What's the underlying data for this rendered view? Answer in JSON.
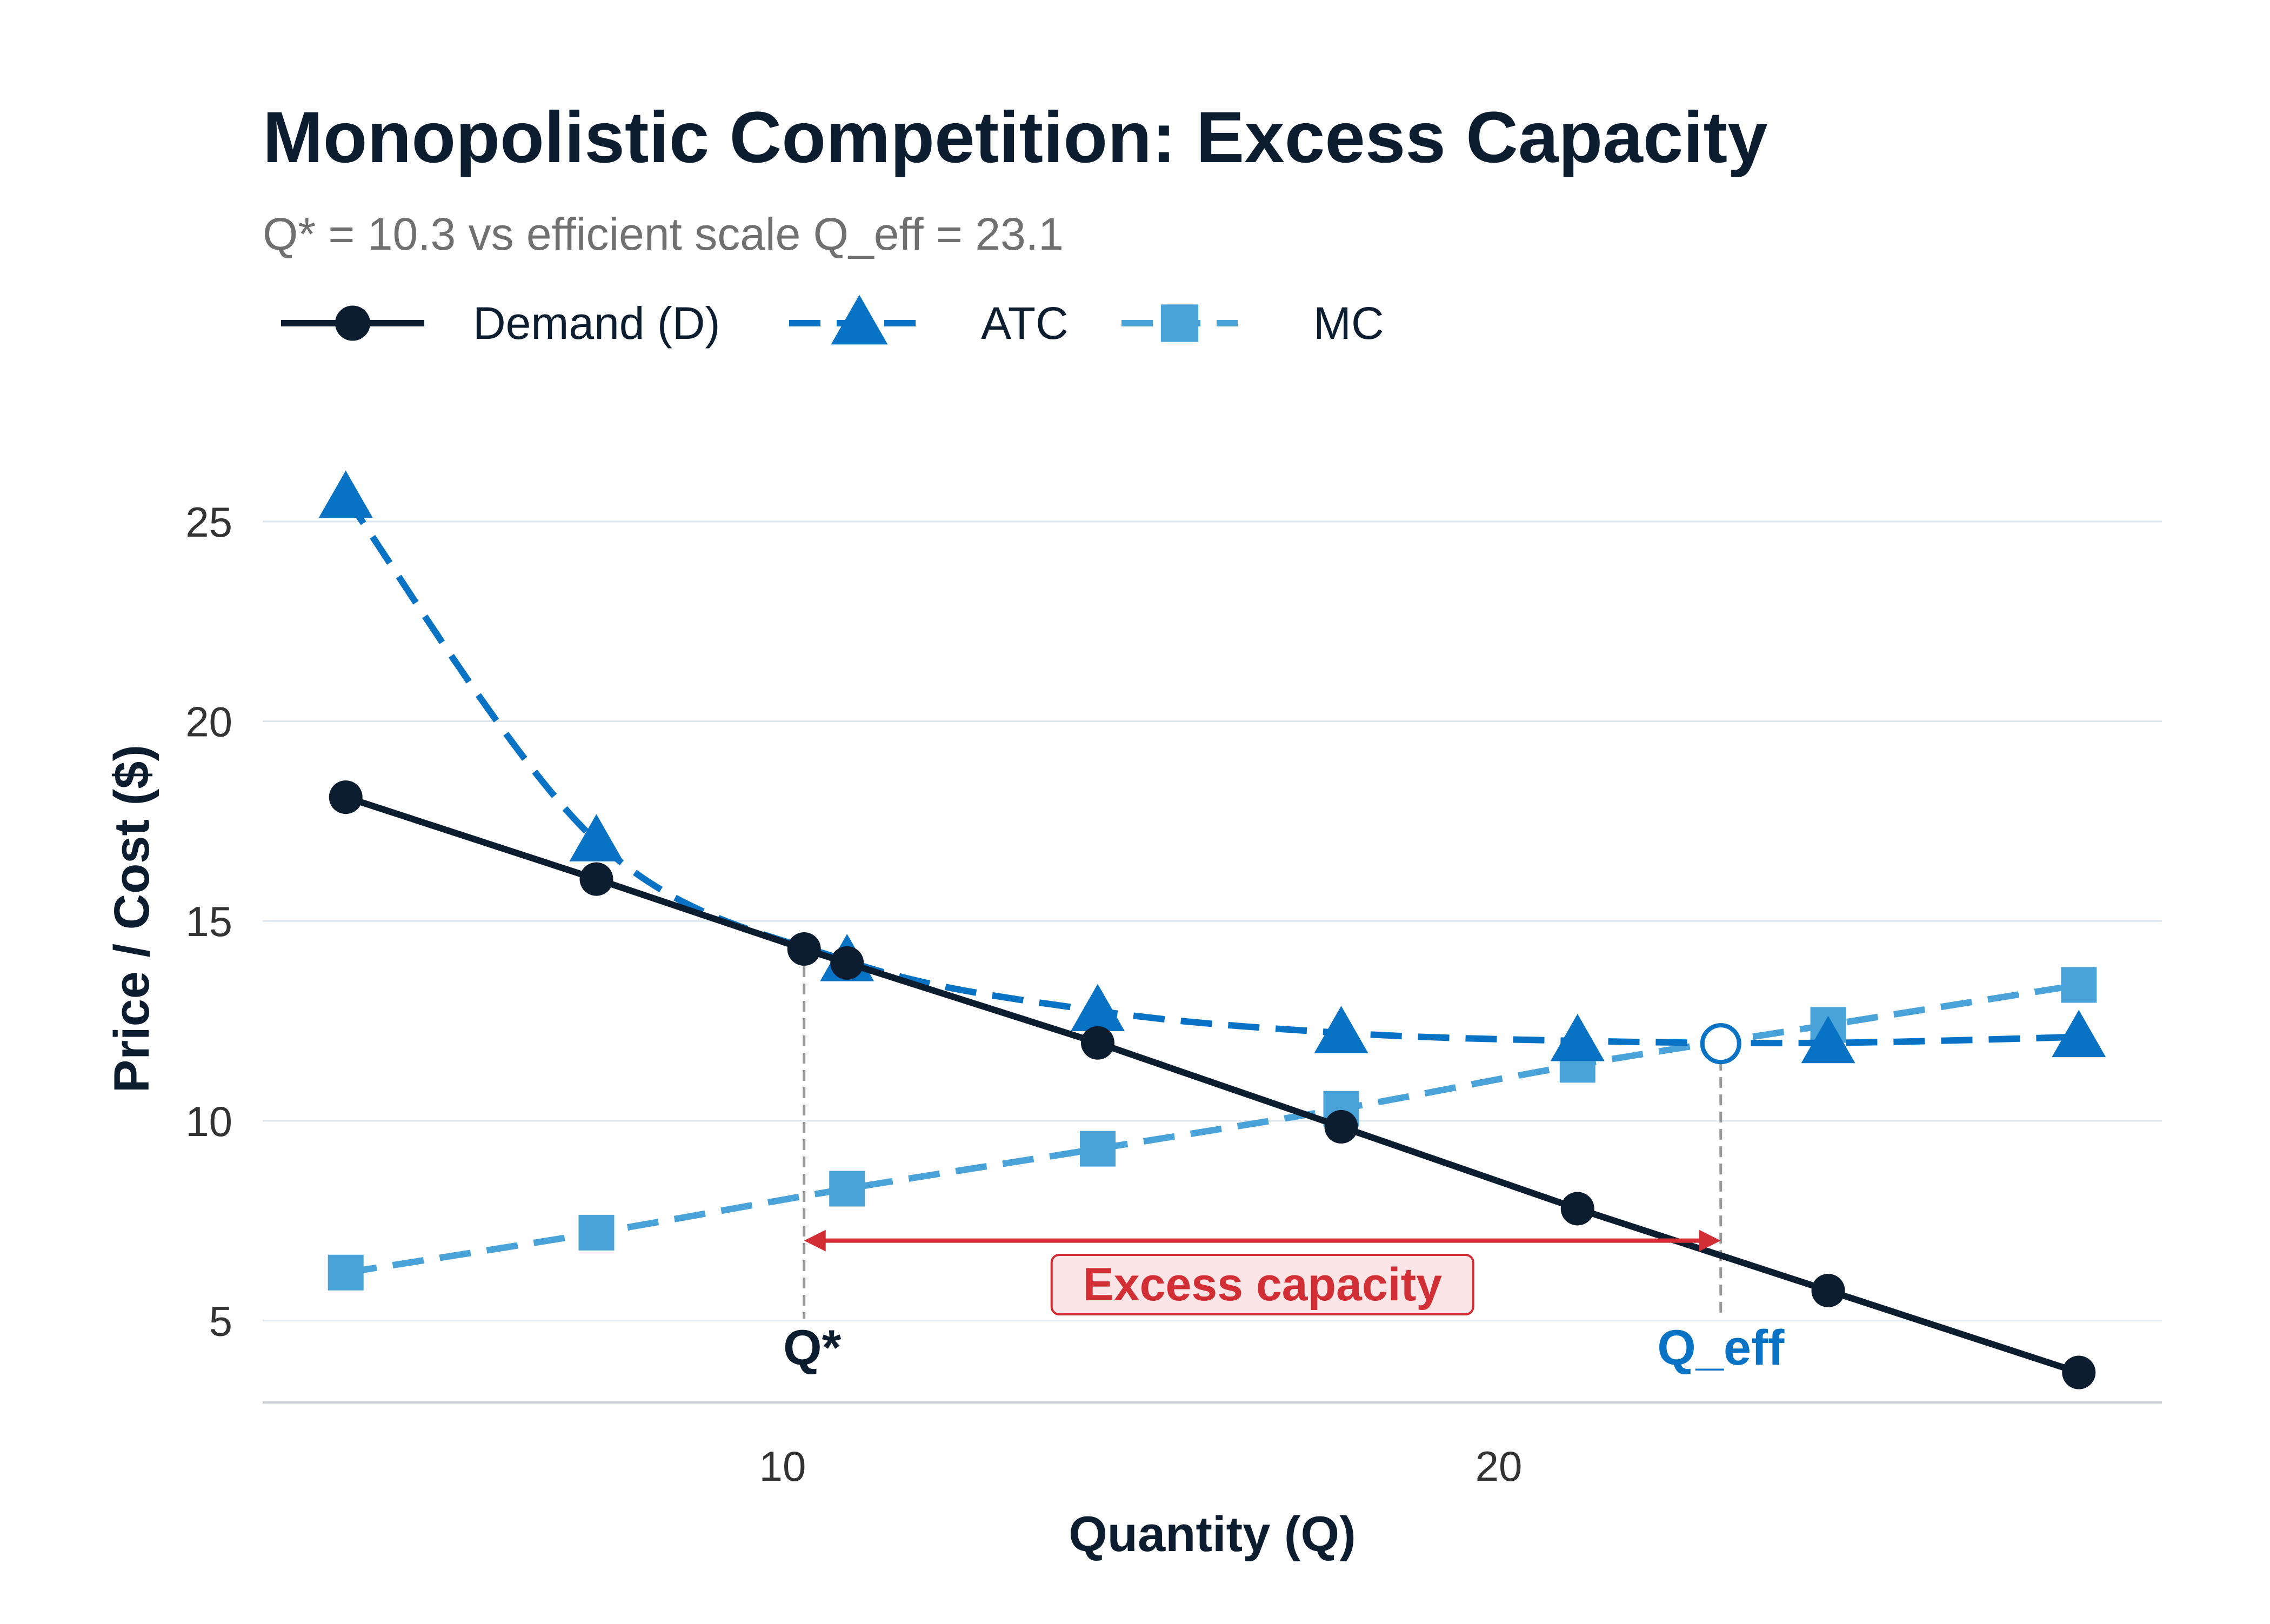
{
  "chart_data": {
    "type": "line",
    "title": "Monopolistic Competition: Excess Capacity",
    "subtitle": "Q* = 10.3 vs efficient scale Q_eff = 23.1",
    "xlabel": "Quantity (Q)",
    "ylabel": "Price / Cost ($)",
    "xlim": [
      2.74,
      29.26
    ],
    "ylim": [
      2.95,
      26.15
    ],
    "x_ticks": [
      10,
      20
    ],
    "y_ticks": [
      5,
      10,
      15,
      20,
      25
    ],
    "grid": "horizontal",
    "legend_position": "top-left",
    "series": [
      {
        "name": "Demand (D)",
        "marker": "circle",
        "line": "solid",
        "color": "#0b1d2e",
        "x": [
          3.9,
          7.4,
          10.3,
          10.9,
          14.4,
          17.8,
          21.1,
          24.6,
          28.1
        ],
        "y": [
          18.1,
          16.05,
          14.3,
          13.95,
          11.95,
          9.85,
          7.8,
          5.75,
          3.7
        ]
      },
      {
        "name": "ATC",
        "marker": "triangle",
        "line": "dashed",
        "color": "#0872c4",
        "x": [
          3.9,
          7.4,
          10.9,
          14.4,
          17.8,
          21.1,
          24.6,
          28.1
        ],
        "y": [
          25.6,
          17.0,
          14.0,
          12.75,
          12.2,
          12.0,
          11.95,
          12.1
        ]
      },
      {
        "name": "MC",
        "marker": "square",
        "line": "dashed",
        "color": "#4aa3d8",
        "x": [
          3.9,
          7.4,
          10.9,
          14.4,
          17.8,
          21.1,
          24.6,
          28.1
        ],
        "y": [
          6.2,
          7.2,
          8.3,
          9.3,
          10.3,
          11.4,
          12.4,
          13.4
        ]
      }
    ],
    "annotations": {
      "q_star": {
        "label": "Q*",
        "x": 10.3,
        "y": 14.3
      },
      "q_eff": {
        "label": "Q_eff",
        "x": 23.1,
        "y": 11.93
      },
      "excess_capacity": {
        "label": "Excess capacity",
        "from_x": 10.3,
        "to_x": 23.1,
        "y": 7.0
      }
    },
    "colors": {
      "demand": "#0b1d2e",
      "atc": "#0872c4",
      "mc": "#4aa3d8",
      "accent": "#d12f35",
      "grid": "#dbe6ee",
      "subtitle": "#707070"
    }
  }
}
